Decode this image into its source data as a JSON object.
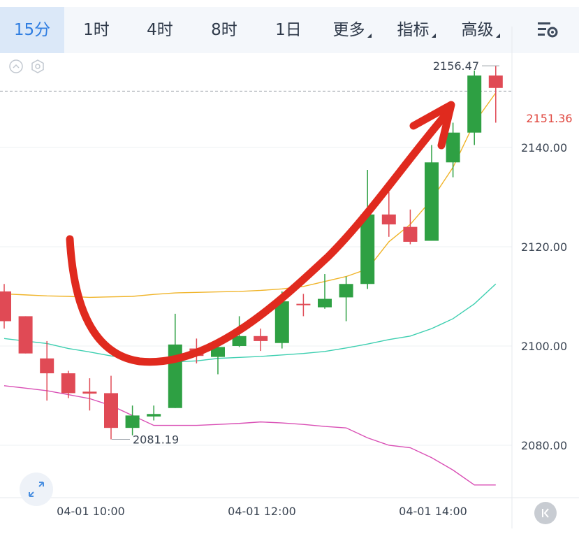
{
  "toolbar": {
    "tabs": [
      {
        "label": "15分",
        "active": true
      },
      {
        "label": "1时"
      },
      {
        "label": "4时"
      },
      {
        "label": "8时"
      },
      {
        "label": "1日"
      },
      {
        "label": "更多",
        "dropdown": true
      },
      {
        "label": "指标",
        "dropdown": true
      },
      {
        "label": "高级",
        "dropdown": true
      }
    ]
  },
  "chart_data": {
    "type": "candlestick",
    "current_price": "2151.36",
    "high_label": "2156.47",
    "low_label": "2081.19",
    "y_ticks": [
      "2140.00",
      "2120.00",
      "2100.00",
      "2080.00"
    ],
    "x_ticks": [
      "04-01 10:00",
      "04-01 12:00",
      "04-01 14:00"
    ],
    "candles": [
      {
        "o": 2111.0,
        "c": 2105.0,
        "h": 2112.5,
        "l": 2103.5
      },
      {
        "o": 2106.0,
        "c": 2098.5,
        "h": 2106.0,
        "l": 2098.5
      },
      {
        "o": 2097.5,
        "c": 2094.5,
        "h": 2101.0,
        "l": 2089.0
      },
      {
        "o": 2094.5,
        "c": 2090.5,
        "h": 2095.0,
        "l": 2089.5
      },
      {
        "o": 2090.8,
        "c": 2090.4,
        "h": 2093.5,
        "l": 2087.0
      },
      {
        "o": 2090.5,
        "c": 2083.5,
        "h": 2094.0,
        "l": 2081.19
      },
      {
        "o": 2083.5,
        "c": 2086.0,
        "h": 2088.0,
        "l": 2082.0
      },
      {
        "o": 2085.8,
        "c": 2086.3,
        "h": 2088.0,
        "l": 2085.0
      },
      {
        "o": 2087.5,
        "c": 2100.3,
        "h": 2106.5,
        "l": 2087.5
      },
      {
        "o": 2099.5,
        "c": 2098.0,
        "h": 2101.5,
        "l": 2096.5
      },
      {
        "o": 2097.8,
        "c": 2099.8,
        "h": 2101.0,
        "l": 2094.3
      },
      {
        "o": 2100.0,
        "c": 2102.0,
        "h": 2106.0,
        "l": 2099.8
      },
      {
        "o": 2102.0,
        "c": 2101.0,
        "h": 2103.5,
        "l": 2099.0
      },
      {
        "o": 2100.6,
        "c": 2109.0,
        "h": 2111.0,
        "l": 2099.5
      },
      {
        "o": 2108.5,
        "c": 2108.3,
        "h": 2110.5,
        "l": 2106.0
      },
      {
        "o": 2107.8,
        "c": 2109.5,
        "h": 2114.5,
        "l": 2107.5
      },
      {
        "o": 2109.8,
        "c": 2112.5,
        "h": 2114.0,
        "l": 2105.0
      },
      {
        "o": 2112.5,
        "c": 2126.5,
        "h": 2135.5,
        "l": 2111.5
      },
      {
        "o": 2126.5,
        "c": 2124.5,
        "h": 2131.0,
        "l": 2122.0
      },
      {
        "o": 2124.0,
        "c": 2121.0,
        "h": 2127.5,
        "l": 2120.5
      },
      {
        "o": 2121.2,
        "c": 2137.0,
        "h": 2140.5,
        "l": 2121.2
      },
      {
        "o": 2137.0,
        "c": 2143.0,
        "h": 2145.0,
        "l": 2134.0
      },
      {
        "o": 2143.0,
        "c": 2154.5,
        "h": 2155.5,
        "l": 2140.5
      },
      {
        "o": 2154.5,
        "c": 2152.0,
        "h": 2156.47,
        "l": 2145.0
      }
    ],
    "ma_yellow": [
      2110.5,
      2110.3,
      2110.1,
      2110.0,
      2109.8,
      2109.9,
      2110.0,
      2110.4,
      2110.7,
      2110.8,
      2110.9,
      2111.0,
      2111.2,
      2111.5,
      2112.0,
      2113.0,
      2114.0,
      2115.5,
      2121.0,
      2124.5,
      2129.5,
      2136.0,
      2145.0,
      2151.0
    ],
    "ma_teal": [
      2101.5,
      2101.0,
      2100.5,
      2099.5,
      2098.8,
      2098.0,
      2097.5,
      2097.0,
      2096.8,
      2097.0,
      2097.5,
      2097.7,
      2097.9,
      2098.2,
      2098.5,
      2098.9,
      2099.6,
      2100.4,
      2101.3,
      2102.0,
      2103.5,
      2105.5,
      2108.5,
      2112.5
    ],
    "ma_pink": [
      2092.0,
      2091.5,
      2091.0,
      2090.2,
      2089.4,
      2088.0,
      2086.0,
      2084.0,
      2084.0,
      2084.0,
      2084.2,
      2084.4,
      2084.7,
      2084.5,
      2084.2,
      2083.8,
      2083.5,
      2081.5,
      2080.0,
      2079.5,
      2077.5,
      2075.0,
      2072.0,
      2072.0
    ]
  }
}
